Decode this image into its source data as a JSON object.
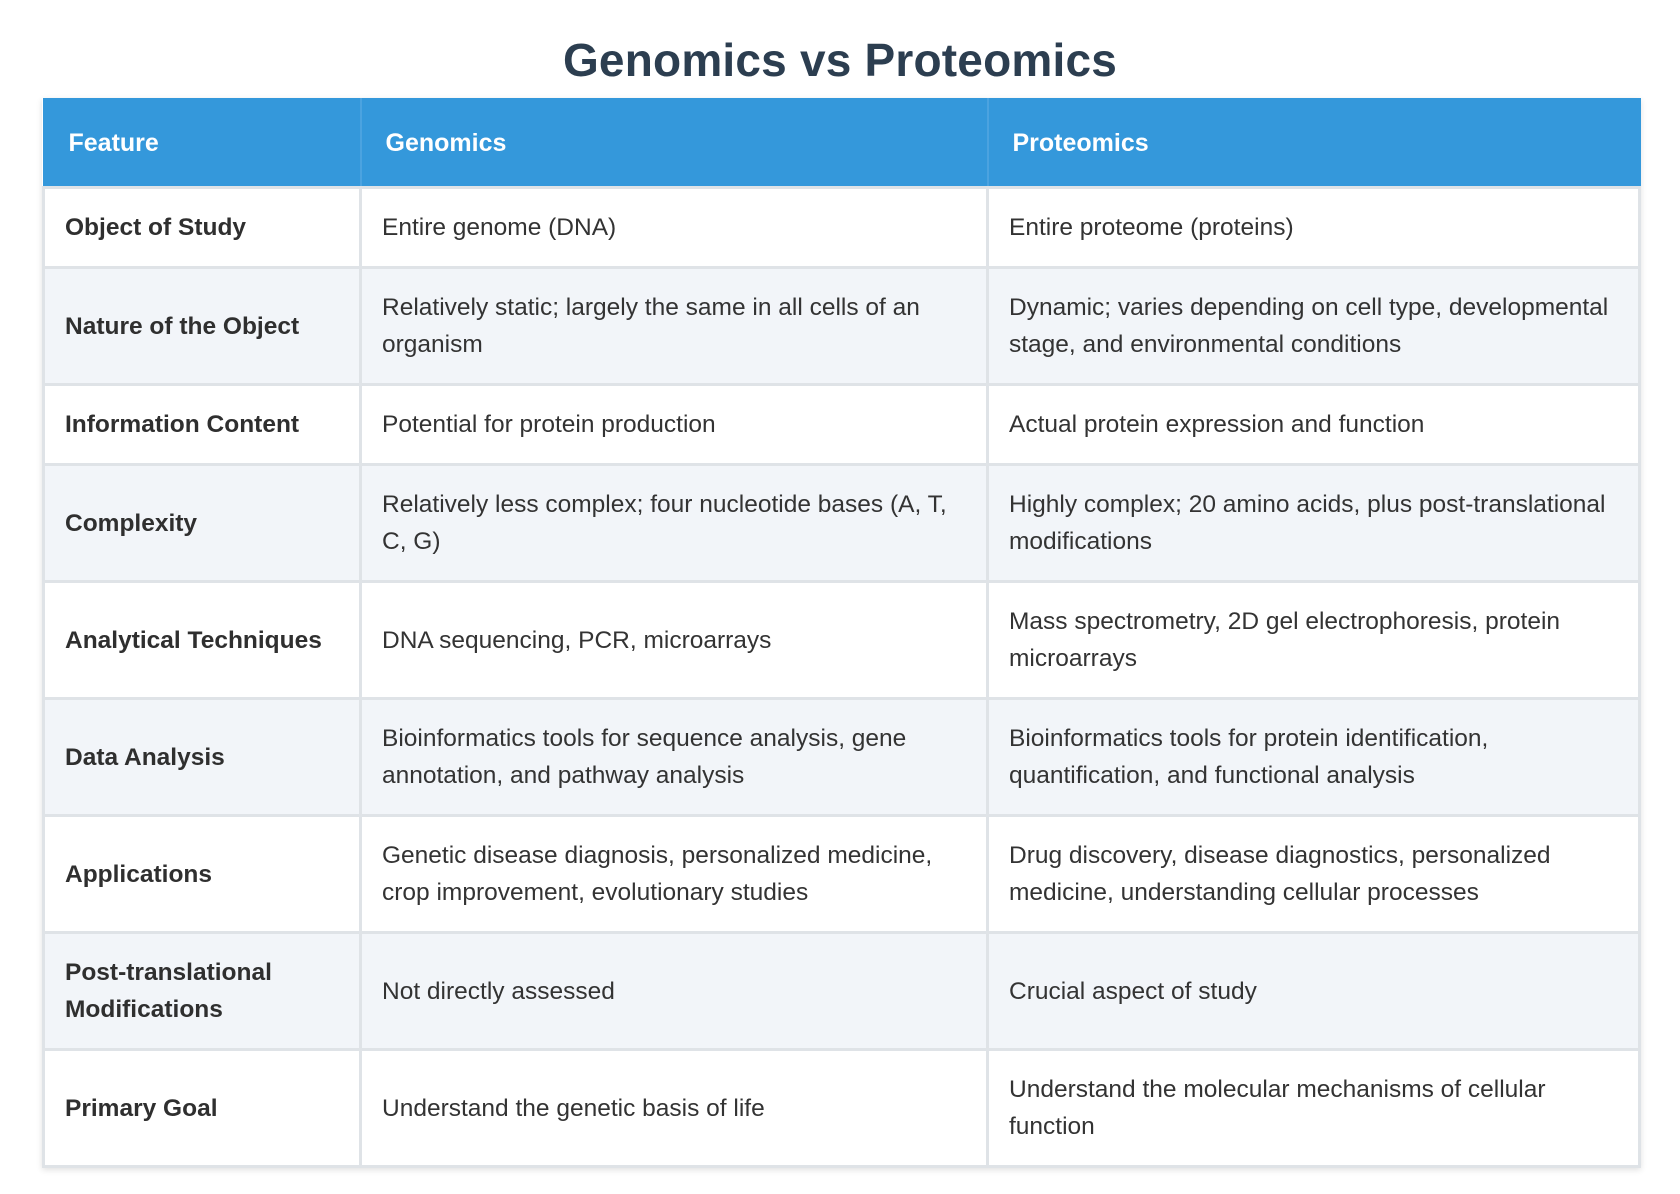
{
  "title": "Genomics vs Proteomics",
  "table": {
    "headers": [
      "Feature",
      "Genomics",
      "Proteomics"
    ],
    "rows": [
      {
        "feature": "Object of Study",
        "genomics": "Entire genome (DNA)",
        "proteomics": "Entire proteome (proteins)"
      },
      {
        "feature": "Nature of the Object",
        "genomics": "Relatively static; largely the same in all cells of an organism",
        "proteomics": "Dynamic; varies depending on cell type, developmental stage, and environmental conditions"
      },
      {
        "feature": "Information Content",
        "genomics": "Potential for protein production",
        "proteomics": "Actual protein expression and function"
      },
      {
        "feature": "Complexity",
        "genomics": "Relatively less complex; four nucleotide bases (A, T, C, G)",
        "proteomics": "Highly complex; 20 amino acids, plus post-translational modifications"
      },
      {
        "feature": "Analytical Techniques",
        "genomics": "DNA sequencing, PCR, microarrays",
        "proteomics": "Mass spectrometry, 2D gel electrophoresis, protein microarrays"
      },
      {
        "feature": "Data Analysis",
        "genomics": "Bioinformatics tools for sequence analysis, gene annotation, and pathway analysis",
        "proteomics": "Bioinformatics tools for protein identification, quantification, and functional analysis"
      },
      {
        "feature": "Applications",
        "genomics": "Genetic disease diagnosis, personalized medicine, crop improvement, evolutionary studies",
        "proteomics": "Drug discovery, disease diagnostics, personalized medicine, understanding cellular processes"
      },
      {
        "feature": "Post-translational Modifications",
        "genomics": "Not directly assessed",
        "proteomics": "Crucial aspect of study"
      },
      {
        "feature": "Primary Goal",
        "genomics": "Understand the genetic basis of life",
        "proteomics": "Understand the molecular mechanisms of cellular function"
      }
    ]
  }
}
